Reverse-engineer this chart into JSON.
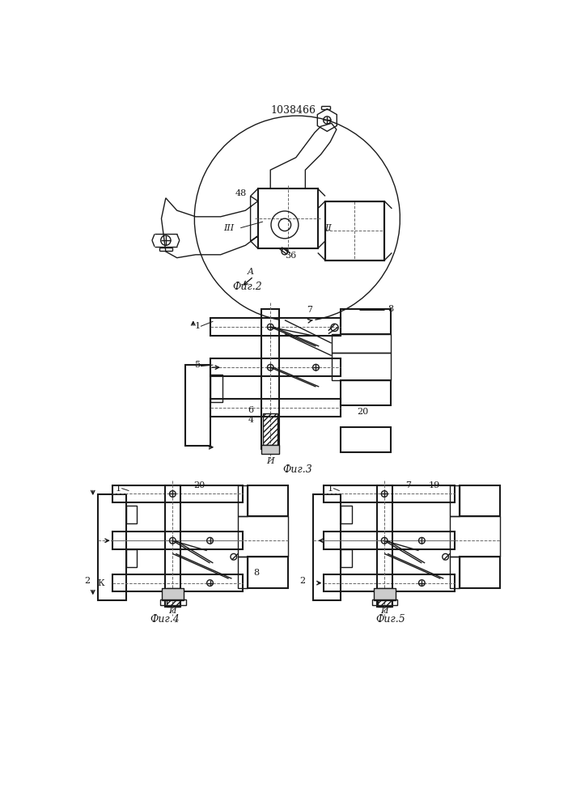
{
  "title": "1038466",
  "bg_color": "#ffffff",
  "line_color": "#1a1a1a",
  "fig2_caption": "Фиг.2",
  "fig3_caption": "Фиг.3",
  "fig4_caption": "Фиг.4",
  "fig5_caption": "Фиг.5"
}
